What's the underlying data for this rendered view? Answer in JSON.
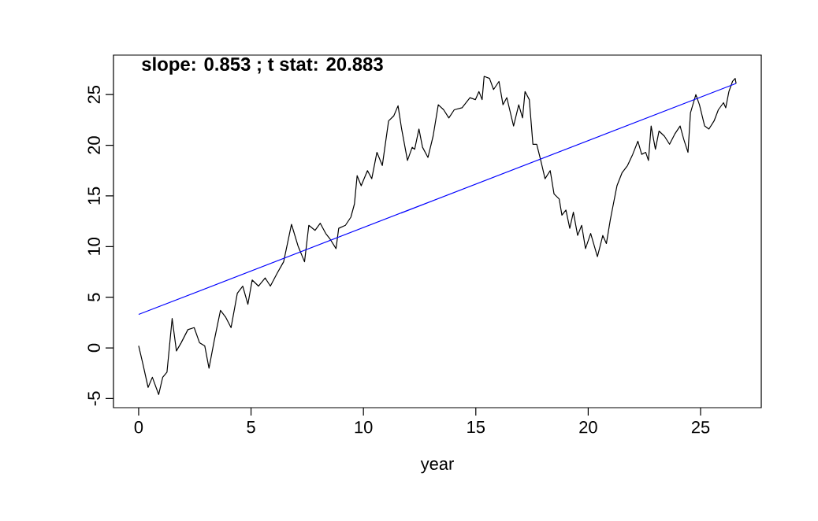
{
  "chart_data": {
    "type": "line",
    "xlabel": "year",
    "annotations": [
      "slope:  0.853 ; t stat: 20.883"
    ],
    "xlim": [
      -1.12,
      27.7
    ],
    "ylim": [
      -5.9,
      28.9
    ],
    "xticks": [
      0,
      5,
      10,
      15,
      20,
      25
    ],
    "yticks": [
      -5,
      0,
      5,
      10,
      15,
      20,
      25
    ],
    "grid": false,
    "marker": "none",
    "line_style": "solid",
    "series": [
      {
        "color": "#000000",
        "x": [
          0,
          0.19,
          0.42,
          0.61,
          0.89,
          1.07,
          1.26,
          1.49,
          1.68,
          1.89,
          2.19,
          2.47,
          2.71,
          2.94,
          3.13,
          3.36,
          3.64,
          3.88,
          4.11,
          4.39,
          4.63,
          4.86,
          5.05,
          5.33,
          5.63,
          5.86,
          6.17,
          6.45,
          6.8,
          7.1,
          7.38,
          7.57,
          7.85,
          8.08,
          8.32,
          8.5,
          8.78,
          8.9,
          9.2,
          9.44,
          9.6,
          9.72,
          9.9,
          10.18,
          10.37,
          10.6,
          10.84,
          11.12,
          11.35,
          11.54,
          11.7,
          11.96,
          12.17,
          12.28,
          12.47,
          12.63,
          12.87,
          13.1,
          13.33,
          13.57,
          13.8,
          14.04,
          14.39,
          14.74,
          14.98,
          15.14,
          15.28,
          15.37,
          15.61,
          15.79,
          16.03,
          16.21,
          16.38,
          16.68,
          16.91,
          17.08,
          17.19,
          17.38,
          17.54,
          17.71,
          17.89,
          18.08,
          18.31,
          18.48,
          18.71,
          18.83,
          19.01,
          19.18,
          19.34,
          19.53,
          19.71,
          19.88,
          20.11,
          20.41,
          20.65,
          20.81,
          20.98,
          21.12,
          21.28,
          21.51,
          21.75,
          21.98,
          22.21,
          22.38,
          22.56,
          22.68,
          22.8,
          22.99,
          23.15,
          23.39,
          23.62,
          23.85,
          24.09,
          24.25,
          24.44,
          24.55,
          24.79,
          24.95,
          25.18,
          25.37,
          25.6,
          25.79,
          26.02,
          26.12,
          26.26,
          26.42,
          26.54,
          26.58
        ],
        "values": [
          0.2,
          -1.6,
          -3.9,
          -2.9,
          -4.6,
          -2.9,
          -2.4,
          2.9,
          -0.3,
          0.5,
          1.8,
          2.0,
          0.5,
          0.2,
          -2.0,
          0.7,
          3.7,
          3.0,
          2.0,
          5.4,
          6.1,
          4.3,
          6.7,
          6.1,
          6.9,
          6.1,
          7.4,
          8.5,
          12.2,
          10.0,
          8.5,
          12.1,
          11.6,
          12.3,
          11.3,
          10.8,
          9.8,
          11.8,
          12.1,
          12.9,
          14.2,
          17.0,
          16.0,
          17.5,
          16.7,
          19.3,
          18.0,
          22.4,
          22.9,
          23.9,
          21.6,
          18.5,
          19.8,
          19.6,
          21.6,
          19.8,
          18.8,
          20.9,
          24.0,
          23.5,
          22.7,
          23.5,
          23.7,
          24.7,
          24.5,
          25.3,
          24.5,
          26.8,
          26.6,
          25.5,
          26.3,
          24.0,
          24.7,
          21.9,
          24.0,
          22.7,
          25.3,
          24.5,
          20.1,
          20.1,
          18.5,
          16.7,
          17.5,
          15.2,
          14.7,
          13.1,
          13.6,
          11.8,
          13.4,
          11.1,
          12.1,
          9.8,
          11.3,
          9.0,
          11.1,
          10.3,
          12.6,
          14.2,
          16.0,
          17.3,
          18.0,
          19.1,
          20.4,
          19.1,
          19.3,
          18.5,
          21.9,
          19.6,
          21.4,
          20.9,
          20.1,
          21.1,
          21.9,
          20.6,
          19.3,
          23.2,
          25.0,
          24.0,
          21.9,
          21.6,
          22.4,
          23.5,
          24.2,
          23.7,
          25.3,
          26.3,
          26.6,
          26.1
        ]
      },
      {
        "color": "#0000ff",
        "x": [
          0,
          26.58
        ],
        "values": [
          3.3,
          26.1
        ]
      }
    ]
  }
}
